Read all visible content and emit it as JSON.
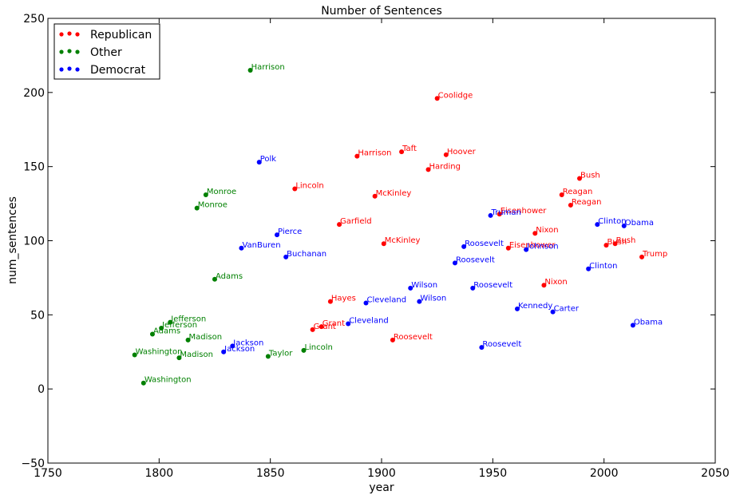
{
  "chart_data": {
    "type": "scatter",
    "title": "Number of Sentences",
    "xlabel": "year",
    "ylabel": "num_sentences",
    "xlim": [
      1750,
      2050
    ],
    "ylim": [
      -50,
      250
    ],
    "xticks": [
      "1750",
      "1800",
      "1850",
      "1900",
      "1950",
      "2000",
      "2050"
    ],
    "yticks": [
      "−50",
      "0",
      "50",
      "100",
      "150",
      "200",
      "250"
    ],
    "grid": false,
    "legend_position": "top-left",
    "series": [
      {
        "name": "Republican",
        "color": "#ff0000",
        "points": [
          {
            "x": 1861,
            "y": 135,
            "label": "Lincoln"
          },
          {
            "x": 1869,
            "y": 40,
            "label": "Grant"
          },
          {
            "x": 1873,
            "y": 42,
            "label": "Grant"
          },
          {
            "x": 1877,
            "y": 59,
            "label": "Hayes"
          },
          {
            "x": 1881,
            "y": 111,
            "label": "Garfield"
          },
          {
            "x": 1889,
            "y": 157,
            "label": "Harrison"
          },
          {
            "x": 1897,
            "y": 130,
            "label": "McKinley"
          },
          {
            "x": 1901,
            "y": 98,
            "label": "McKinley"
          },
          {
            "x": 1905,
            "y": 33,
            "label": "Roosevelt"
          },
          {
            "x": 1909,
            "y": 160,
            "label": "Taft"
          },
          {
            "x": 1921,
            "y": 148,
            "label": "Harding"
          },
          {
            "x": 1925,
            "y": 196,
            "label": "Coolidge"
          },
          {
            "x": 1929,
            "y": 158,
            "label": "Hoover"
          },
          {
            "x": 1953,
            "y": 118,
            "label": "Eisenhower"
          },
          {
            "x": 1957,
            "y": 95,
            "label": "Eisenhower"
          },
          {
            "x": 1969,
            "y": 105,
            "label": "Nixon"
          },
          {
            "x": 1973,
            "y": 70,
            "label": "Nixon"
          },
          {
            "x": 1981,
            "y": 131,
            "label": "Reagan"
          },
          {
            "x": 1985,
            "y": 124,
            "label": "Reagan"
          },
          {
            "x": 1989,
            "y": 142,
            "label": "Bush"
          },
          {
            "x": 2001,
            "y": 97,
            "label": "Bush"
          },
          {
            "x": 2005,
            "y": 98,
            "label": "Bush"
          },
          {
            "x": 2017,
            "y": 89,
            "label": "Trump"
          }
        ]
      },
      {
        "name": "Other",
        "color": "#008000",
        "points": [
          {
            "x": 1789,
            "y": 23,
            "label": "Washington"
          },
          {
            "x": 1793,
            "y": 4,
            "label": "Washington"
          },
          {
            "x": 1797,
            "y": 37,
            "label": "Adams"
          },
          {
            "x": 1801,
            "y": 41,
            "label": "Jefferson"
          },
          {
            "x": 1805,
            "y": 45,
            "label": "Jefferson"
          },
          {
            "x": 1809,
            "y": 21,
            "label": "Madison"
          },
          {
            "x": 1813,
            "y": 33,
            "label": "Madison"
          },
          {
            "x": 1817,
            "y": 122,
            "label": "Monroe"
          },
          {
            "x": 1821,
            "y": 131,
            "label": "Monroe"
          },
          {
            "x": 1825,
            "y": 74,
            "label": "Adams"
          },
          {
            "x": 1841,
            "y": 215,
            "label": "Harrison"
          },
          {
            "x": 1849,
            "y": 22,
            "label": "Taylor"
          },
          {
            "x": 1865,
            "y": 26,
            "label": "Lincoln"
          }
        ]
      },
      {
        "name": "Democrat",
        "color": "#0000ff",
        "points": [
          {
            "x": 1829,
            "y": 25,
            "label": "Jackson"
          },
          {
            "x": 1833,
            "y": 29,
            "label": "Jackson"
          },
          {
            "x": 1837,
            "y": 95,
            "label": "VanBuren"
          },
          {
            "x": 1845,
            "y": 153,
            "label": "Polk"
          },
          {
            "x": 1853,
            "y": 104,
            "label": "Pierce"
          },
          {
            "x": 1857,
            "y": 89,
            "label": "Buchanan"
          },
          {
            "x": 1885,
            "y": 44,
            "label": "Cleveland"
          },
          {
            "x": 1893,
            "y": 58,
            "label": "Cleveland"
          },
          {
            "x": 1913,
            "y": 68,
            "label": "Wilson"
          },
          {
            "x": 1917,
            "y": 59,
            "label": "Wilson"
          },
          {
            "x": 1933,
            "y": 85,
            "label": "Roosevelt"
          },
          {
            "x": 1937,
            "y": 96,
            "label": "Roosevelt"
          },
          {
            "x": 1941,
            "y": 68,
            "label": "Roosevelt"
          },
          {
            "x": 1945,
            "y": 28,
            "label": "Roosevelt"
          },
          {
            "x": 1949,
            "y": 117,
            "label": "Truman"
          },
          {
            "x": 1961,
            "y": 54,
            "label": "Kennedy"
          },
          {
            "x": 1965,
            "y": 94,
            "label": "Johnson"
          },
          {
            "x": 1977,
            "y": 52,
            "label": "Carter"
          },
          {
            "x": 1993,
            "y": 81,
            "label": "Clinton"
          },
          {
            "x": 1997,
            "y": 111,
            "label": "Clinton"
          },
          {
            "x": 2009,
            "y": 110,
            "label": "Obama"
          },
          {
            "x": 2013,
            "y": 43,
            "label": "Obama"
          }
        ]
      }
    ]
  }
}
